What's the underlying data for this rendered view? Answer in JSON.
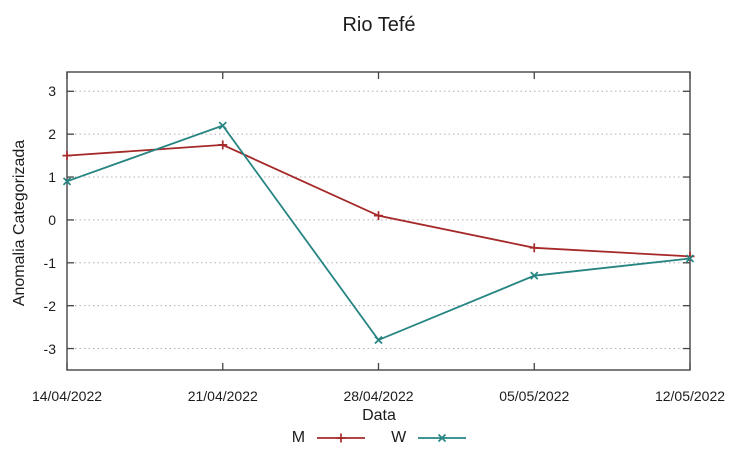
{
  "chart_data": {
    "type": "line",
    "title": "Rio Tefé",
    "xlabel": "Data",
    "ylabel": "Anomalia Categorizada",
    "categories": [
      "14/04/2022",
      "21/04/2022",
      "28/04/2022",
      "05/05/2022",
      "12/05/2022"
    ],
    "series": [
      {
        "name": "M",
        "color": "#a62929",
        "marker": "plus",
        "values": [
          1.5,
          1.75,
          0.1,
          -0.65,
          -0.85
        ]
      },
      {
        "name": "W",
        "color": "#268583",
        "marker": "cross",
        "values": [
          0.9,
          2.2,
          -2.8,
          -1.3,
          -0.9
        ]
      }
    ],
    "yticks": [
      -3,
      -2,
      -1,
      0,
      1,
      2,
      3
    ],
    "ylim": [
      -3.5,
      3.45
    ],
    "grid": "horizontal-dotted",
    "legend_position": "bottom-center",
    "colors": {
      "grid": "#b0b0b0",
      "axis": "#444444",
      "text": "#1c1c1c",
      "background": "#ffffff"
    }
  }
}
